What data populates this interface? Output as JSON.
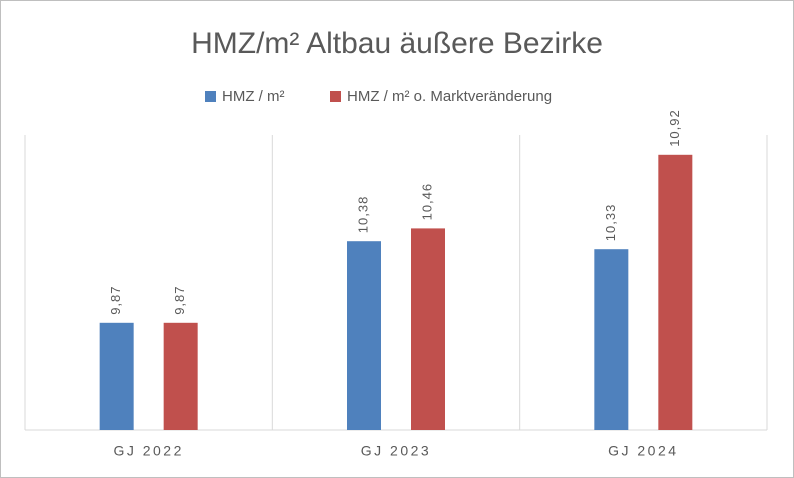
{
  "chart_data": {
    "type": "bar",
    "title": "HMZ/m²  Altbau äußere Bezirke",
    "categories": [
      "GJ 2022",
      "GJ 2023",
      "GJ 2024"
    ],
    "series": [
      {
        "name": "HMZ / m²",
        "color": "#4f81bd",
        "values": [
          9.87,
          10.38,
          10.33
        ],
        "value_labels": [
          "9,87",
          "10,38",
          "10,33"
        ]
      },
      {
        "name": "HMZ / m² o. Marktveränderung",
        "color": "#c0504d",
        "values": [
          9.87,
          10.46,
          10.92
        ],
        "value_labels": [
          "9,87",
          "10,46",
          "10,92"
        ]
      }
    ],
    "ylim": [
      9.2,
      11.0
    ],
    "legend": "top"
  }
}
